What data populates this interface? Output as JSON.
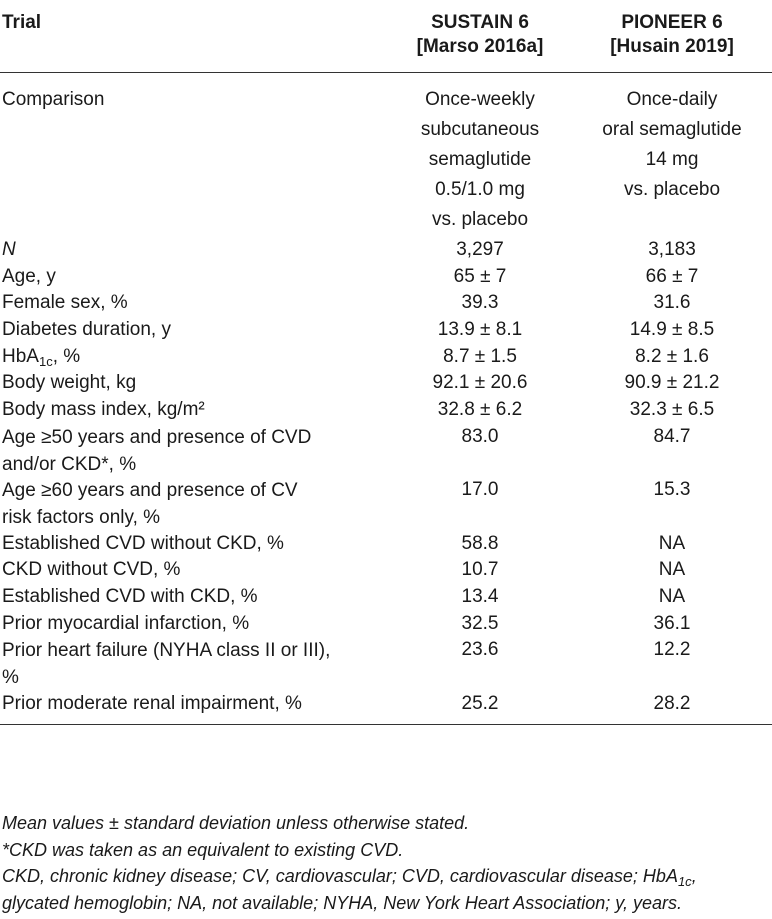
{
  "table": {
    "headers": {
      "trial": "Trial",
      "sustain_name": "SUSTAIN 6",
      "sustain_ref": "[Marso 2016a]",
      "pioneer_name": "PIONEER 6",
      "pioneer_ref": "[Husain 2019]"
    },
    "comparison": {
      "label": "Comparison",
      "sustain_lines": [
        "Once-weekly",
        "subcutaneous",
        "semaglutide",
        "0.5/1.0 mg",
        "vs. placebo"
      ],
      "pioneer_lines": [
        "Once-daily",
        "oral semaglutide",
        "14 mg",
        "vs. placebo"
      ]
    },
    "rows": [
      {
        "label": "N",
        "sustain": "3,297",
        "pioneer": "3,183"
      },
      {
        "label": "Age, y",
        "sustain": "65 ± 7",
        "pioneer": "66 ± 7"
      },
      {
        "label": "Female sex, %",
        "sustain": "39.3",
        "pioneer": "31.6"
      },
      {
        "label": "Diabetes duration, y",
        "sustain": "13.9 ± 8.1",
        "pioneer": "14.9 ± 8.5"
      },
      {
        "label_main": "HbA",
        "label_sub": "1c",
        "label_tail": ", %",
        "sustain": "8.7 ± 1.5",
        "pioneer": "8.2 ± 1.6"
      },
      {
        "label": "Body weight, kg",
        "sustain": "92.1 ± 20.6",
        "pioneer": "90.9 ± 21.2"
      },
      {
        "label": "Body mass index, kg/m²",
        "sustain": "32.8 ± 6.2",
        "pioneer": "32.3 ± 6.5"
      },
      {
        "label_line1": "Age ≥50 years and presence of CVD",
        "label_line2": "and/or CKD*, %",
        "sustain": "83.0",
        "pioneer": "84.7"
      },
      {
        "label_line1": "Age ≥60 years and presence of CV",
        "label_line2": "risk factors only, %",
        "sustain": "17.0",
        "pioneer": "15.3"
      },
      {
        "label": "Established CVD without CKD, %",
        "sustain": "58.8",
        "pioneer": "NA"
      },
      {
        "label": "CKD without CVD, %",
        "sustain": "10.7",
        "pioneer": "NA"
      },
      {
        "label": "Established CVD with CKD, %",
        "sustain": "13.4",
        "pioneer": "NA"
      },
      {
        "label": "Prior myocardial infarction, %",
        "sustain": "32.5",
        "pioneer": "36.1"
      },
      {
        "label_line1": "Prior heart failure (NYHA class II or III),",
        "label_line2": "%",
        "sustain": "23.6",
        "pioneer": "12.2"
      },
      {
        "label": "Prior moderate renal impairment, %",
        "sustain": "25.2",
        "pioneer": "28.2"
      }
    ]
  },
  "notes": {
    "line1": "Mean values ± standard deviation unless otherwise stated.",
    "line2": "*CKD was taken as an equivalent to existing CVD.",
    "line3_pre": "CKD, chronic kidney disease; CV, cardiovascular; CVD, cardiovascular disease; HbA",
    "line3_sub": "1c",
    "line3_post": ",",
    "line4": "glycated hemoglobin; NA, not available; NYHA, New York Heart Association; y, years."
  }
}
